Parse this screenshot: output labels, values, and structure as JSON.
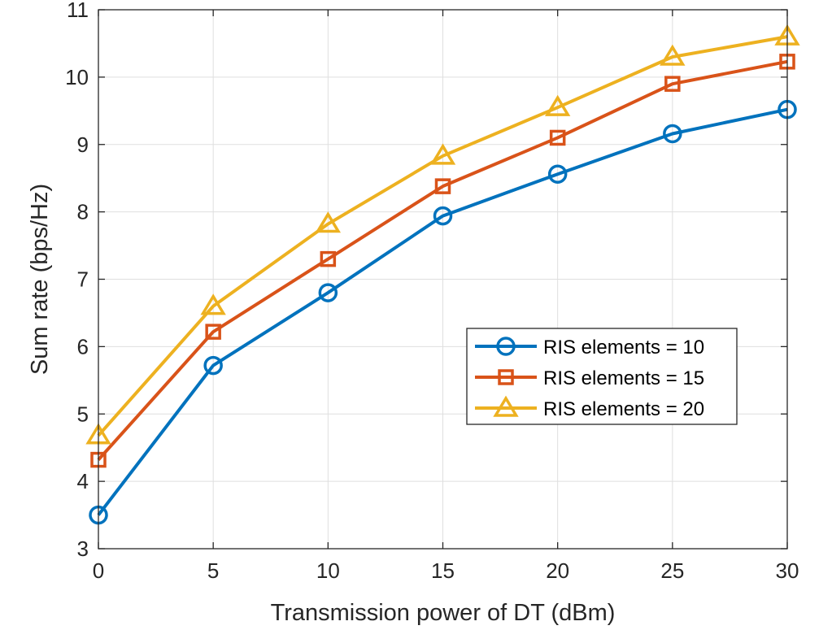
{
  "chart_data": {
    "type": "line",
    "title": "",
    "xlabel": "Transmission power of DT (dBm)",
    "ylabel": "Sum rate (bps/Hz)",
    "xlim": [
      0,
      30
    ],
    "ylim": [
      3,
      11
    ],
    "xticks": [
      "0",
      "5",
      "10",
      "15",
      "20",
      "25",
      "30"
    ],
    "yticks": [
      "3",
      "4",
      "5",
      "6",
      "7",
      "8",
      "9",
      "10",
      "11"
    ],
    "grid": true,
    "legend_position": "center-right",
    "x": [
      0,
      5,
      10,
      15,
      20,
      25,
      30
    ],
    "series": [
      {
        "name": "RIS elements = 10",
        "marker": "circle",
        "color": "#0072BD",
        "values": [
          3.5,
          5.72,
          6.8,
          7.94,
          8.56,
          9.16,
          9.52
        ]
      },
      {
        "name": "RIS elements = 15",
        "marker": "square",
        "color": "#D95319",
        "values": [
          4.32,
          6.22,
          7.3,
          8.38,
          9.1,
          9.9,
          10.23
        ]
      },
      {
        "name": "RIS elements = 20",
        "marker": "triangle",
        "color": "#EDB120",
        "values": [
          4.68,
          6.6,
          7.82,
          8.83,
          9.55,
          10.3,
          10.6
        ]
      }
    ]
  }
}
